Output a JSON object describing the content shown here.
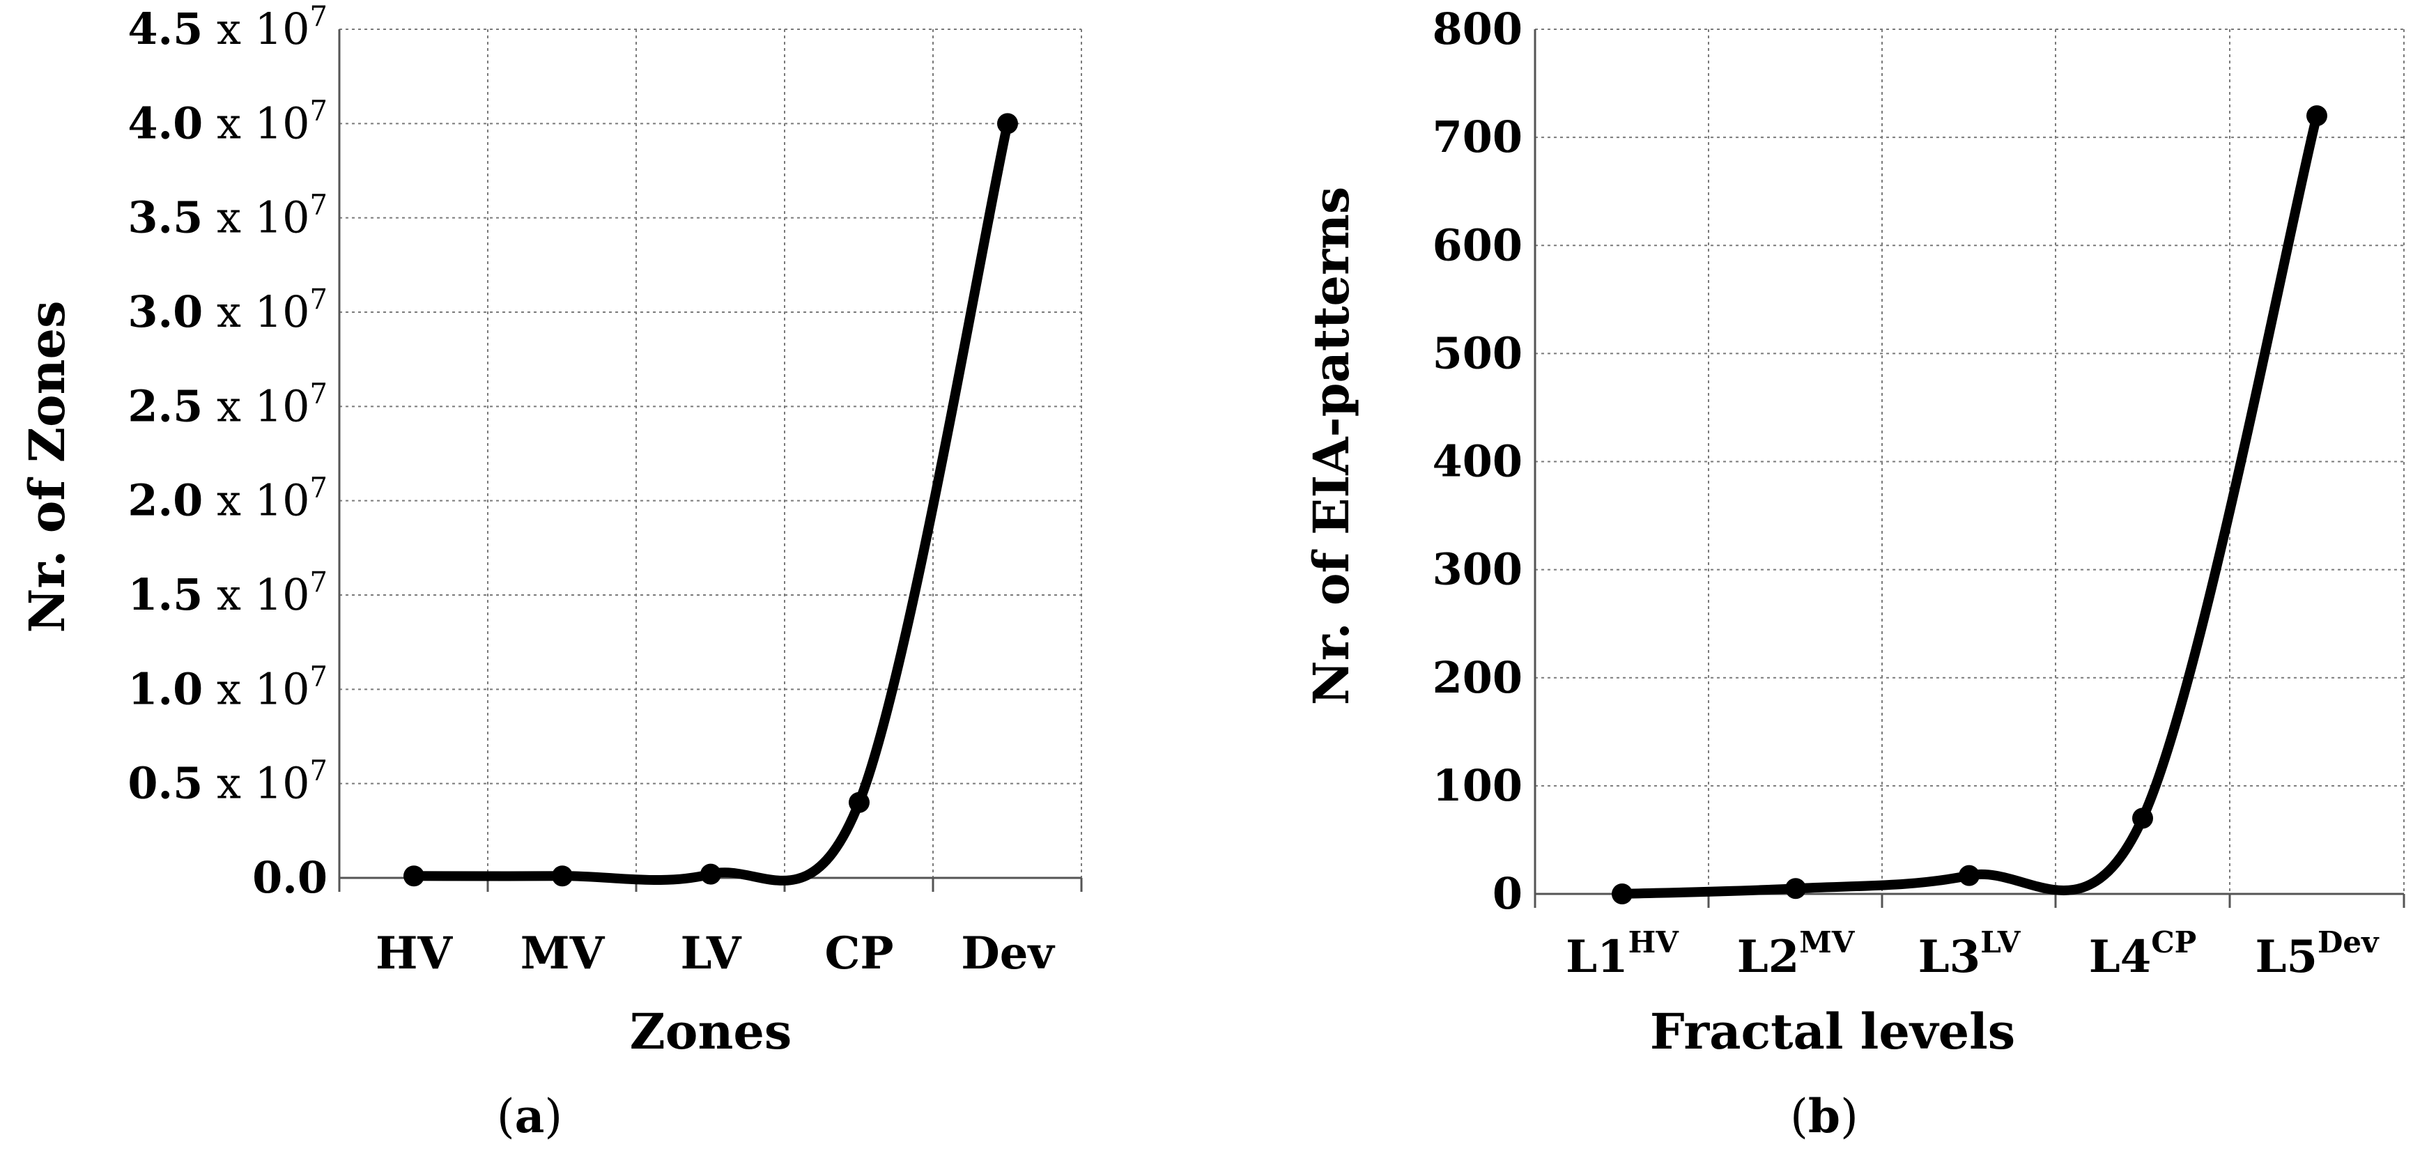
{
  "chart_data": [
    {
      "type": "line",
      "panel_label": "a",
      "title": "",
      "xlabel": "Zones",
      "ylabel": "Nr. of Zones",
      "categories": [
        "HV",
        "MV",
        "LV",
        "CP",
        "Dev"
      ],
      "values": [
        100000,
        100000,
        200000,
        4000000,
        40000000
      ],
      "ylim": [
        0,
        45000000
      ],
      "yticks": [
        {
          "value": 0,
          "mantissa": "0.0",
          "exponent": ""
        },
        {
          "value": 5000000,
          "mantissa": "0.5",
          "exponent": "7"
        },
        {
          "value": 10000000,
          "mantissa": "1.0",
          "exponent": "7"
        },
        {
          "value": 15000000,
          "mantissa": "1.5",
          "exponent": "7"
        },
        {
          "value": 20000000,
          "mantissa": "2.0",
          "exponent": "7"
        },
        {
          "value": 25000000,
          "mantissa": "2.5",
          "exponent": "7"
        },
        {
          "value": 30000000,
          "mantissa": "3.0",
          "exponent": "7"
        },
        {
          "value": 35000000,
          "mantissa": "3.5",
          "exponent": "7"
        },
        {
          "value": 40000000,
          "mantissa": "4.0",
          "exponent": "7"
        },
        {
          "value": 45000000,
          "mantissa": "4.5",
          "exponent": "7"
        }
      ],
      "tick_suffix": " x 10",
      "grid": true,
      "smooth": true
    },
    {
      "type": "line",
      "panel_label": "b",
      "title": "",
      "xlabel": "Fractal levels",
      "ylabel": "Nr. of EIA-patterns",
      "categories": [
        {
          "base": "L1",
          "sup": "HV"
        },
        {
          "base": "L2",
          "sup": "MV"
        },
        {
          "base": "L3",
          "sup": "LV"
        },
        {
          "base": "L4",
          "sup": "CP"
        },
        {
          "base": "L5",
          "sup": "Dev"
        }
      ],
      "values": [
        0,
        5,
        17,
        70,
        720
      ],
      "ylim": [
        0,
        800
      ],
      "yticks": [
        "0",
        "100",
        "200",
        "300",
        "400",
        "500",
        "600",
        "700",
        "800"
      ],
      "grid": true,
      "smooth": true
    }
  ]
}
